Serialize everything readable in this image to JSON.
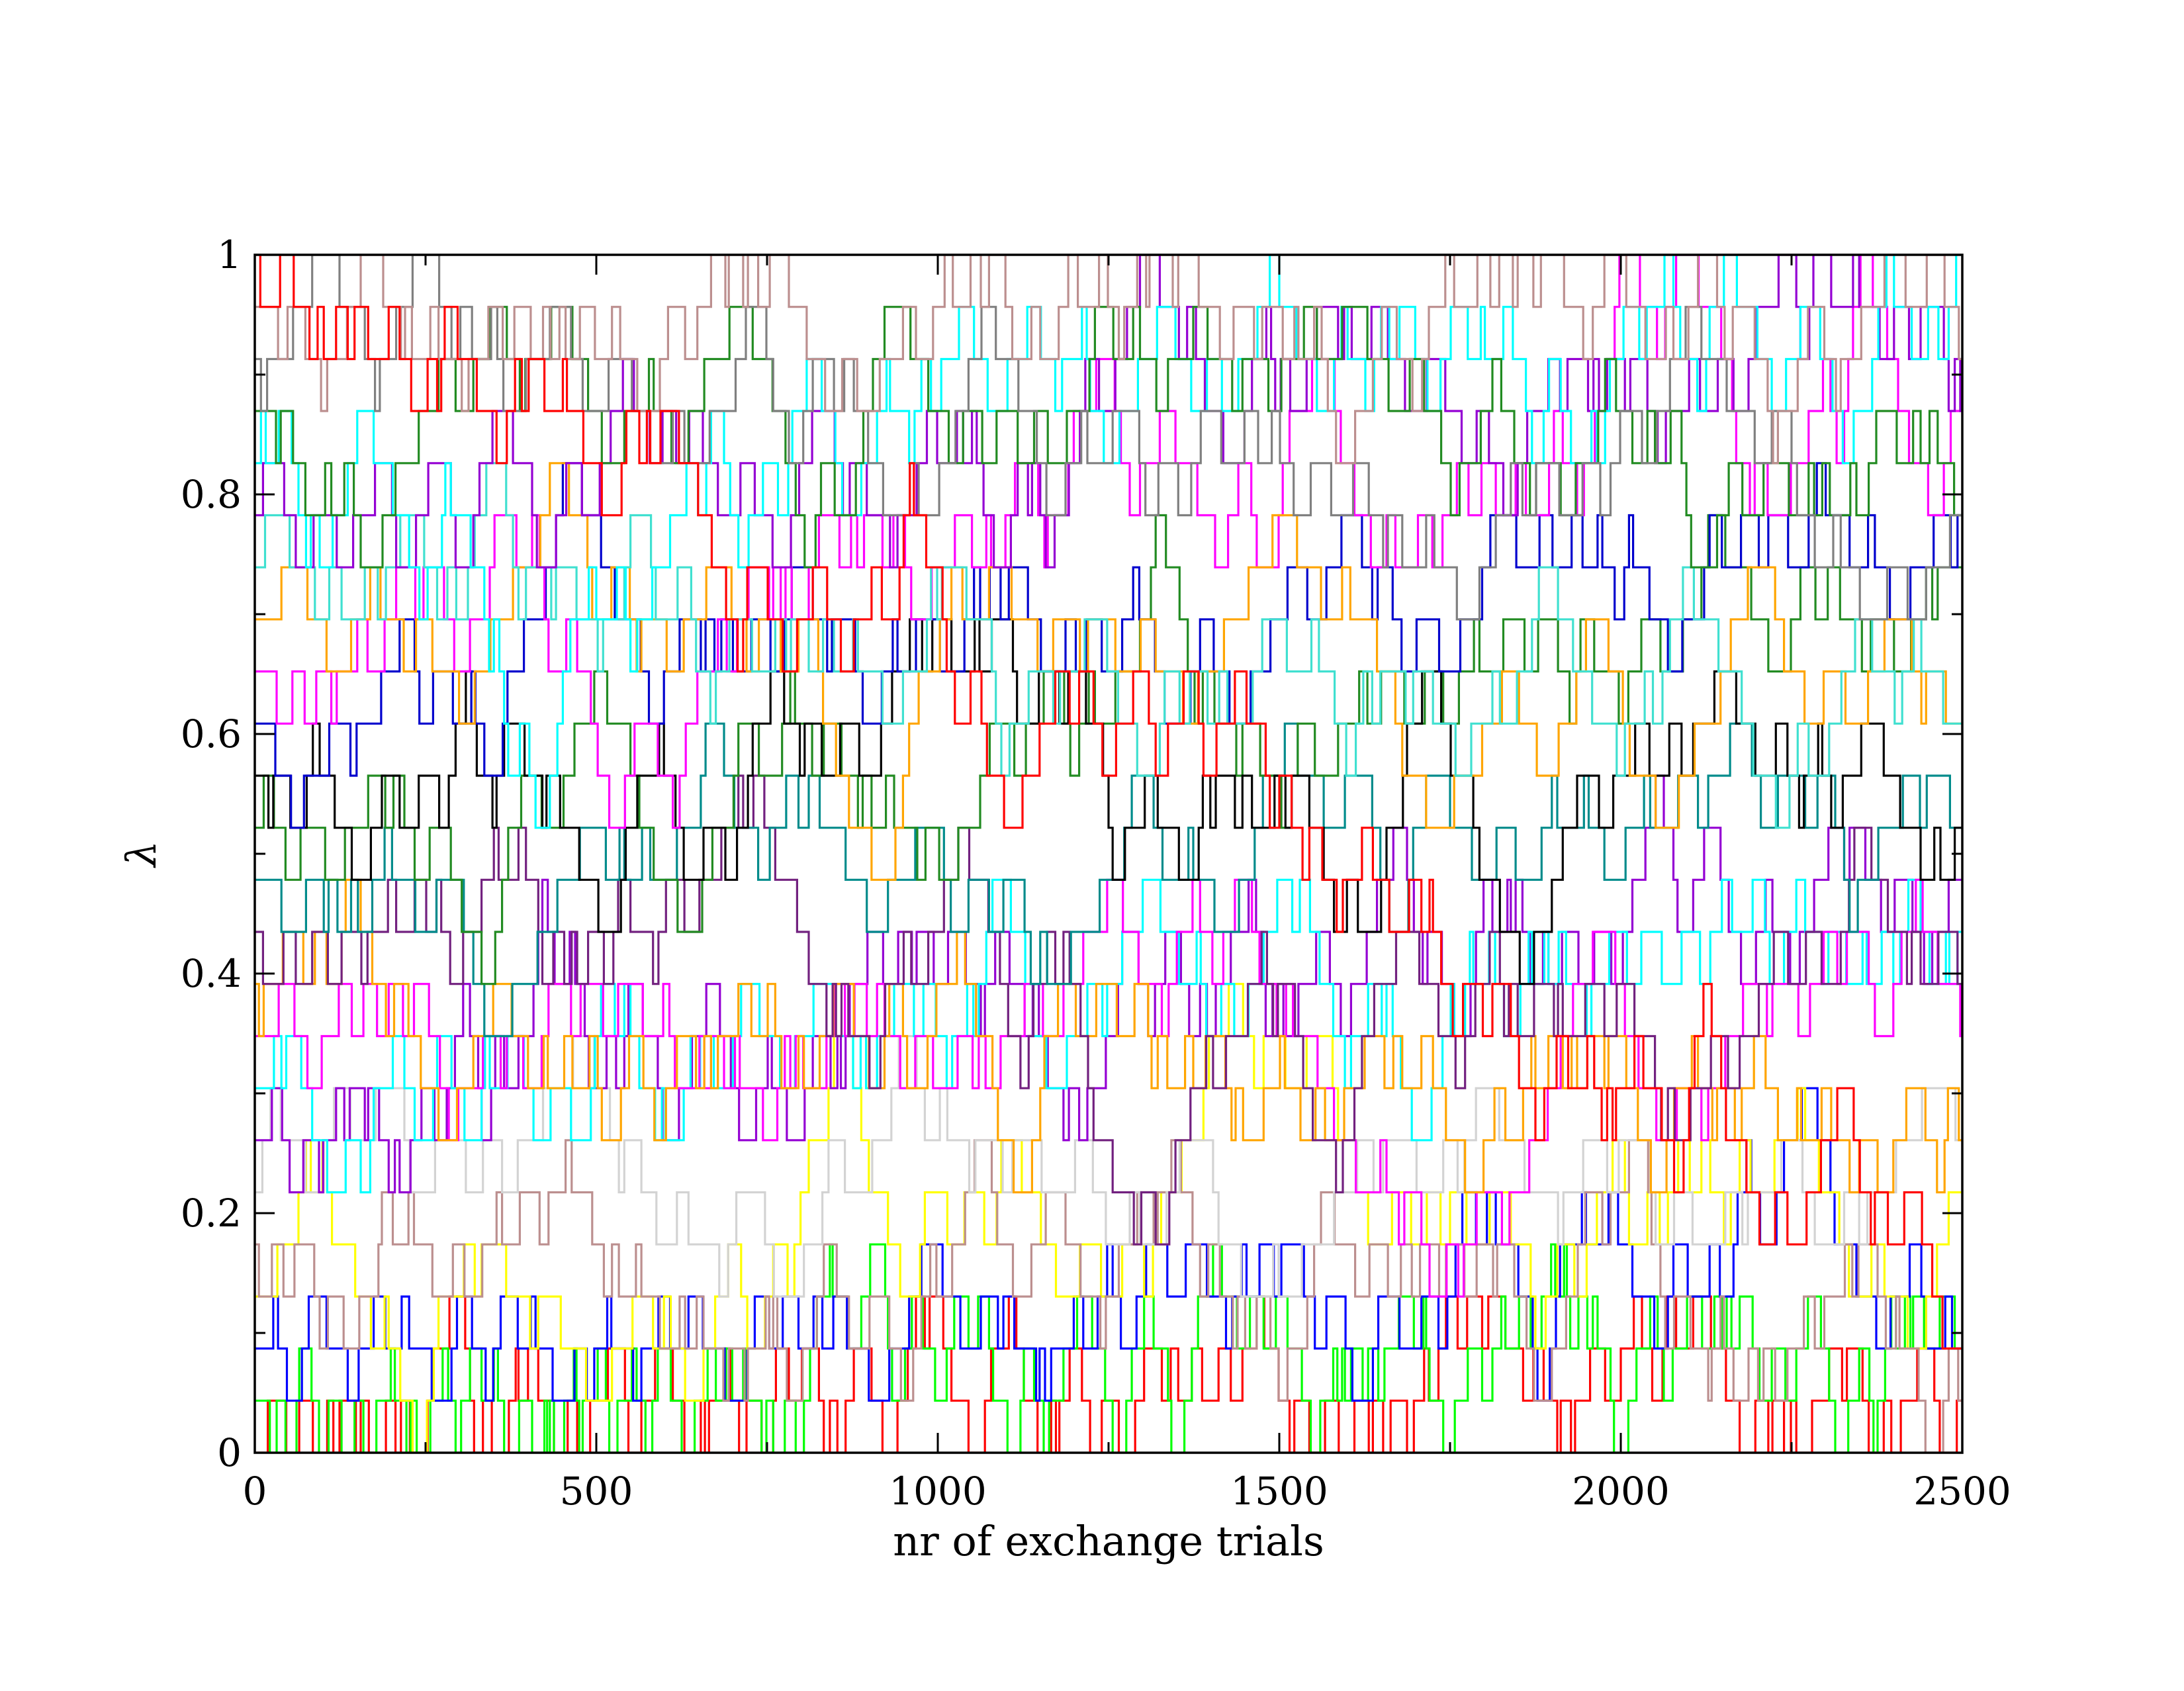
{
  "chart_data": {
    "type": "line",
    "title": "",
    "xlabel": "nr of exchange trials",
    "ylabel": "λ",
    "xlim": [
      0,
      2500
    ],
    "ylim": [
      0,
      1
    ],
    "x_ticks": [
      0,
      500,
      1000,
      1500,
      2000,
      2500
    ],
    "x_tick_labels": [
      "0",
      "500",
      "1000",
      "1500",
      "2000",
      "2500"
    ],
    "y_ticks": [
      0,
      0.2,
      0.4,
      0.6,
      0.8,
      1
    ],
    "y_tick_labels": [
      "0",
      "0.2",
      "0.4",
      "0.6",
      "0.8",
      "1"
    ],
    "grid": false,
    "legend": "none",
    "lambda_levels": [
      0,
      0.0435,
      0.087,
      0.1304,
      0.1739,
      0.2174,
      0.2609,
      0.3043,
      0.3478,
      0.3913,
      0.4348,
      0.4783,
      0.5217,
      0.5652,
      0.6087,
      0.6522,
      0.6957,
      0.7391,
      0.7826,
      0.8261,
      0.8696,
      0.913,
      0.9565,
      1
    ],
    "series_colors": [
      "#ff0000",
      "#00ff00",
      "#0000ff",
      "#ffff00",
      "#bc8f8f",
      "#d3d3d3",
      "#9400d3",
      "#00ffff",
      "#ff00ff",
      "#ffa500",
      "#72217f",
      "#008b8b",
      "#228b22",
      "#000000",
      "#0000cd",
      "#ff00ff",
      "#ffa500",
      "#40e0d0",
      "#9400d3",
      "#00ffff",
      "#228b22",
      "#808080",
      "#bc8f8f",
      "#ff0000"
    ],
    "series": [
      {
        "start_level": 0,
        "end_level": 1,
        "switch_interval": 14
      },
      {
        "start_level": 1,
        "end_level": 2,
        "switch_interval": 12
      },
      {
        "start_level": 2,
        "end_level": 4,
        "switch_interval": 18
      },
      {
        "start_level": 3,
        "end_level": 5,
        "switch_interval": 20
      },
      {
        "start_level": 4,
        "end_level": 2,
        "switch_interval": 16
      },
      {
        "start_level": 5,
        "end_level": 5,
        "switch_interval": 26
      },
      {
        "start_level": 6,
        "end_level": 11,
        "switch_interval": 14
      },
      {
        "start_level": 7,
        "end_level": 10,
        "switch_interval": 16
      },
      {
        "start_level": 8,
        "end_level": 9,
        "switch_interval": 20
      },
      {
        "start_level": 9,
        "end_level": 6,
        "switch_interval": 16
      },
      {
        "start_level": 10,
        "end_level": 8,
        "switch_interval": 18
      },
      {
        "start_level": 11,
        "end_level": 13,
        "switch_interval": 22
      },
      {
        "start_level": 12,
        "end_level": 16,
        "switch_interval": 20
      },
      {
        "start_level": 13,
        "end_level": 12,
        "switch_interval": 18
      },
      {
        "start_level": 14,
        "end_level": 18,
        "switch_interval": 20
      },
      {
        "start_level": 15,
        "end_level": 20,
        "switch_interval": 18
      },
      {
        "start_level": 16,
        "end_level": 15,
        "switch_interval": 22
      },
      {
        "start_level": 17,
        "end_level": 14,
        "switch_interval": 20
      },
      {
        "start_level": 18,
        "end_level": 21,
        "switch_interval": 18
      },
      {
        "start_level": 19,
        "end_level": 23,
        "switch_interval": 16
      },
      {
        "start_level": 20,
        "end_level": 19,
        "switch_interval": 20
      },
      {
        "start_level": 21,
        "end_level": 17,
        "switch_interval": 22
      },
      {
        "start_level": 22,
        "end_level": 22,
        "switch_interval": 18
      },
      {
        "start_level": 23,
        "end_level": 3,
        "switch_interval": 16
      }
    ]
  }
}
